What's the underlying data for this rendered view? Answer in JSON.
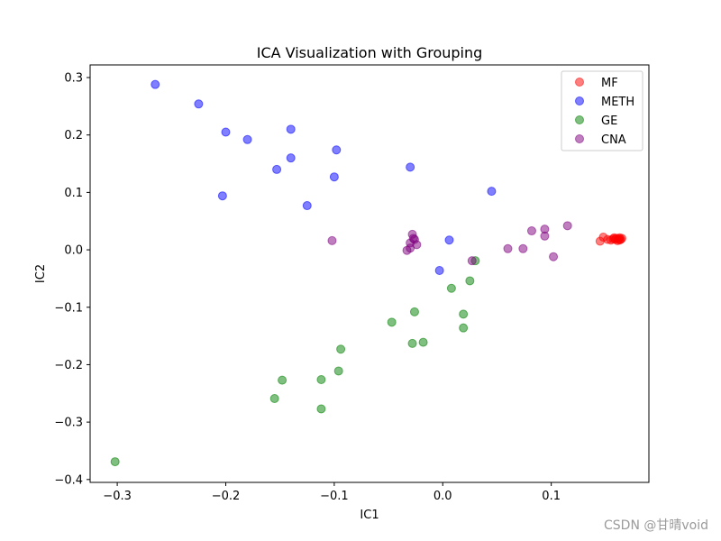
{
  "watermark": "CSDN @甘晴void",
  "chart_data": {
    "type": "scatter",
    "title": "ICA Visualization with Grouping",
    "xlabel": "IC1",
    "ylabel": "IC2",
    "xlim": [
      -0.325,
      0.19
    ],
    "ylim": [
      -0.405,
      0.322
    ],
    "xticks": [
      -0.3,
      -0.2,
      -0.1,
      0.0,
      0.1
    ],
    "xtick_labels": [
      "−0.3",
      "−0.2",
      "−0.1",
      "0.0",
      "0.1"
    ],
    "yticks": [
      -0.4,
      -0.3,
      -0.2,
      -0.1,
      0.0,
      0.1,
      0.2,
      0.3
    ],
    "ytick_labels": [
      "−0.4",
      "−0.3",
      "−0.2",
      "−0.1",
      "0.0",
      "0.1",
      "0.2",
      "0.3"
    ],
    "grid": false,
    "legend_position": "top-right",
    "series": [
      {
        "name": "MF",
        "color": "#ff0000",
        "points": [
          [
            0.145,
            0.015
          ],
          [
            0.148,
            0.022
          ],
          [
            0.152,
            0.018
          ],
          [
            0.155,
            0.017
          ],
          [
            0.157,
            0.019
          ],
          [
            0.159,
            0.018
          ],
          [
            0.16,
            0.02
          ],
          [
            0.161,
            0.016
          ],
          [
            0.162,
            0.019
          ],
          [
            0.163,
            0.021
          ],
          [
            0.164,
            0.018
          ],
          [
            0.165,
            0.02
          ],
          [
            0.163,
            0.017
          ],
          [
            0.158,
            0.021
          ]
        ]
      },
      {
        "name": "METH",
        "color": "#0000ff",
        "points": [
          [
            -0.265,
            0.288
          ],
          [
            -0.225,
            0.254
          ],
          [
            -0.2,
            0.205
          ],
          [
            -0.18,
            0.192
          ],
          [
            -0.14,
            0.21
          ],
          [
            -0.14,
            0.16
          ],
          [
            -0.153,
            0.14
          ],
          [
            -0.098,
            0.174
          ],
          [
            -0.203,
            0.094
          ],
          [
            -0.125,
            0.077
          ],
          [
            -0.1,
            0.127
          ],
          [
            -0.03,
            0.144
          ],
          [
            0.045,
            0.102
          ],
          [
            0.006,
            0.017
          ],
          [
            -0.003,
            -0.036
          ]
        ]
      },
      {
        "name": "GE",
        "color": "#008000",
        "points": [
          [
            0.03,
            -0.019
          ],
          [
            0.008,
            -0.067
          ],
          [
            0.025,
            -0.054
          ],
          [
            -0.026,
            -0.108
          ],
          [
            0.019,
            -0.112
          ],
          [
            0.019,
            -0.136
          ],
          [
            -0.047,
            -0.126
          ],
          [
            -0.028,
            -0.163
          ],
          [
            -0.018,
            -0.161
          ],
          [
            -0.094,
            -0.173
          ],
          [
            -0.096,
            -0.211
          ],
          [
            -0.112,
            -0.226
          ],
          [
            -0.148,
            -0.227
          ],
          [
            -0.155,
            -0.259
          ],
          [
            -0.112,
            -0.277
          ],
          [
            -0.302,
            -0.369
          ]
        ]
      },
      {
        "name": "CNA",
        "color": "#800080",
        "points": [
          [
            -0.102,
            0.016
          ],
          [
            -0.028,
            0.027
          ],
          [
            -0.027,
            0.02
          ],
          [
            -0.026,
            0.018
          ],
          [
            -0.03,
            0.012
          ],
          [
            -0.024,
            0.009
          ],
          [
            -0.03,
            0.003
          ],
          [
            -0.033,
            -0.001
          ],
          [
            0.027,
            -0.019
          ],
          [
            0.06,
            0.002
          ],
          [
            0.074,
            0.002
          ],
          [
            0.082,
            0.033
          ],
          [
            0.094,
            0.036
          ],
          [
            0.094,
            0.024
          ],
          [
            0.102,
            -0.012
          ],
          [
            0.115,
            0.042
          ]
        ]
      }
    ]
  }
}
